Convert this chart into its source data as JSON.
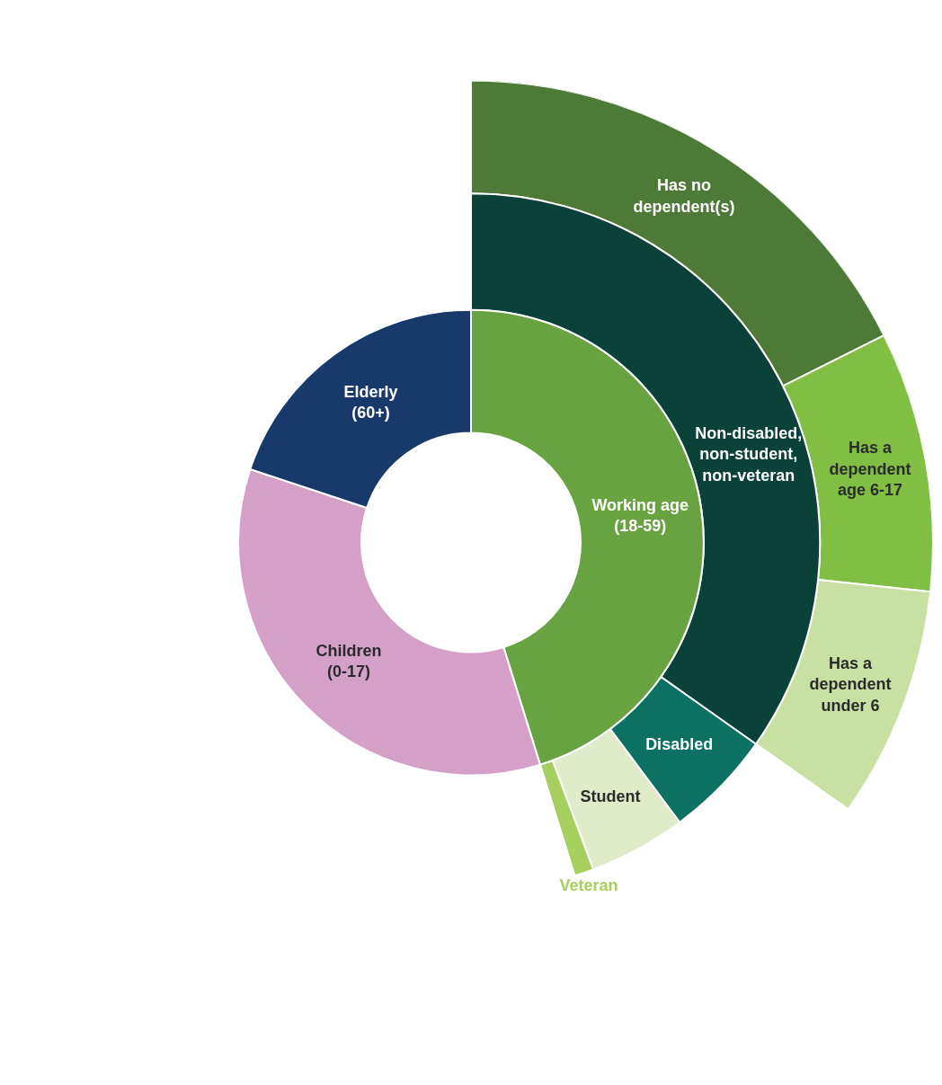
{
  "chart_data": [
    {
      "type": "donut",
      "categories": [
        "Working age\n(18-59)",
        "Children\n(0-17)",
        "Elderly\n(60+)"
      ],
      "values": [
        45.2,
        34.9,
        19.9
      ],
      "colors": [
        "#68a342",
        "#d5a0c8",
        "#183a6b"
      ]
    },
    {
      "type": "donut",
      "categories": [
        "Non-disabled,\nnon-student,\nnon-veteran",
        "Disabled",
        "Student",
        "Veteran",
        null
      ],
      "values": [
        34.8,
        5.0,
        4.5,
        0.9,
        54.8
      ],
      "colors": [
        "#0a4138",
        "#0c7062",
        "#e0ebc9",
        "#a6d05e",
        "#ffffff"
      ]
    },
    {
      "type": "donut",
      "categories": [
        "Has no\ndependent(s)",
        "Has a\ndependent\nage 6-17",
        "Has a\ndependent\nunder 6",
        null
      ],
      "values": [
        17.6,
        9.1,
        8.1,
        65.2
      ],
      "colors": [
        "#4e7a37",
        "#80bf44",
        "#c9e0a3",
        "#ffffff"
      ]
    }
  ]
}
